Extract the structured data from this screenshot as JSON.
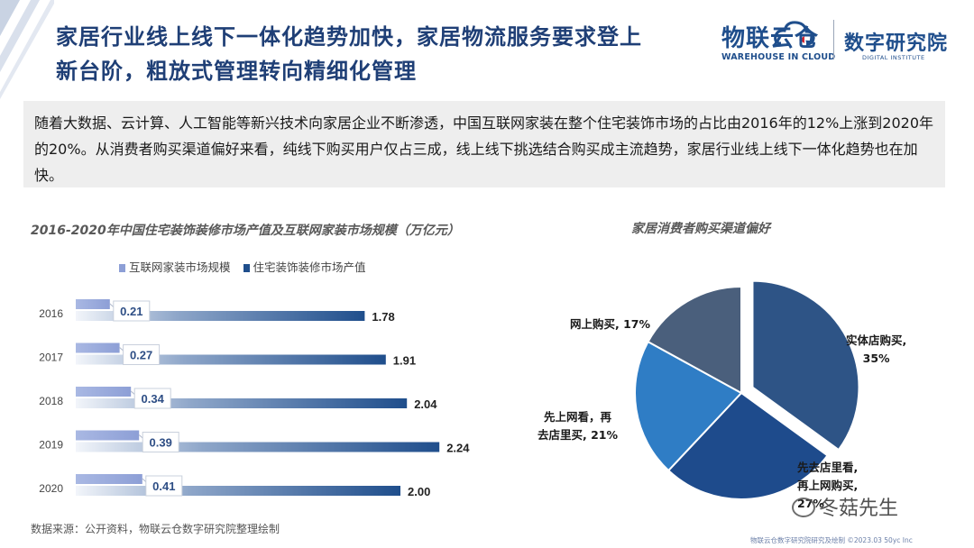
{
  "header": {
    "title_line1": "家居行业线上线下一体化趋势加快，家居物流服务要求登上",
    "title_line2": "新台阶，粗放式管理转向精细化管理"
  },
  "logos": {
    "wlyc_cn": "物联云仓",
    "wlyc_en": "WAREHOUSE IN CLOUD",
    "institute_cn": "数字研究院",
    "institute_en": "DIGITAL INSTITUTE"
  },
  "intro_text": "随着大数据、云计算、人工智能等新兴技术向家居企业不断渗透，中国互联网家装在整个住宅装饰市场的占比由2016年的12%上涨到2020年的20%。从消费者购买渠道偏好来看，纯线下购买用户仅占三成，线上线下挑选结合购买成主流趋势，家居行业线上线下一体化趋势也在加快。",
  "colors": {
    "title": "#1f3f76",
    "series_online": "#8d9fd6",
    "series_total": "#1f4e8c",
    "pie_offline": "#2e5486",
    "pie_online_first": "#1e4b8c",
    "pie_store_first": "#2f7dc5",
    "pie_online": "#4a5f7c"
  },
  "chart_data": [
    {
      "type": "bar",
      "orientation": "horizontal",
      "title": "2016-2020年中国住宅装饰装修市场产值及互联网家装市场规模（万亿元）",
      "categories": [
        "2016",
        "2017",
        "2018",
        "2019",
        "2020"
      ],
      "series": [
        {
          "name": "互联网家装市场规模",
          "values": [
            0.21,
            0.27,
            0.34,
            0.39,
            0.41
          ],
          "labels": [
            "0.21",
            "0.27",
            "0.34",
            "0.39",
            "0.41"
          ]
        },
        {
          "name": "住宅装饰装修市场产值",
          "values": [
            1.78,
            1.91,
            2.04,
            2.24,
            2.0
          ],
          "labels": [
            "1.78",
            "1.91",
            "2.04",
            "2.24",
            "2.00"
          ]
        }
      ],
      "grid": false,
      "legend": "top"
    },
    {
      "type": "pie",
      "title": "家居消费者购买渠道偏好",
      "slices": [
        {
          "name": "实体店购买",
          "value": 35,
          "label_line1": "实体店购买,",
          "label_line2": "35%"
        },
        {
          "name": "先去店里看，再上网购买",
          "value": 27,
          "label_line1": "先去店里看,",
          "label_line2": "再上网购买,",
          "label_line3": "27%"
        },
        {
          "name": "先上网看，再去店里买",
          "value": 21,
          "label_line1": "先上网看，再",
          "label_line2": "去店里买, 21%"
        },
        {
          "name": "网上购买",
          "value": 17,
          "label_line1": "网上购买, 17%"
        }
      ]
    }
  ],
  "source_text": "数据来源：公开资料，物联云仓数字研究院整理绘制",
  "footer_text": "物联云仓数字研究院研究及绘制   ©2023.03 50yc Inc",
  "watermark": "冬菇先生"
}
